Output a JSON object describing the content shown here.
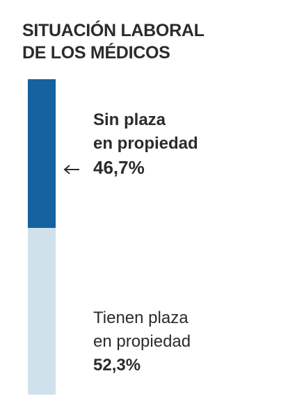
{
  "header": {
    "title_line1": "SITUACIÓN LABORAL",
    "title_line2": "DE LOS MÉDICOS"
  },
  "chart_data": {
    "type": "bar",
    "stacked": true,
    "orientation": "vertical",
    "categories": [
      "Sin plaza en propiedad",
      "Tienen plaza en propiedad"
    ],
    "values": [
      46.7,
      52.3
    ],
    "value_labels": [
      "46,7%",
      "52,3%"
    ],
    "title": "SITUACIÓN LABORAL DE LOS MÉDICOS",
    "colors": [
      "#1462a0",
      "#cfe2ec"
    ],
    "segments": [
      {
        "line1": "Sin plaza",
        "line2": "en propiedad",
        "value": 46.7,
        "value_label": "46,7%",
        "color": "#1462a0"
      },
      {
        "line1": "Tienen plaza",
        "line2": "en propiedad",
        "value": 52.3,
        "value_label": "52,3%",
        "color": "#cfe2ec"
      }
    ]
  }
}
